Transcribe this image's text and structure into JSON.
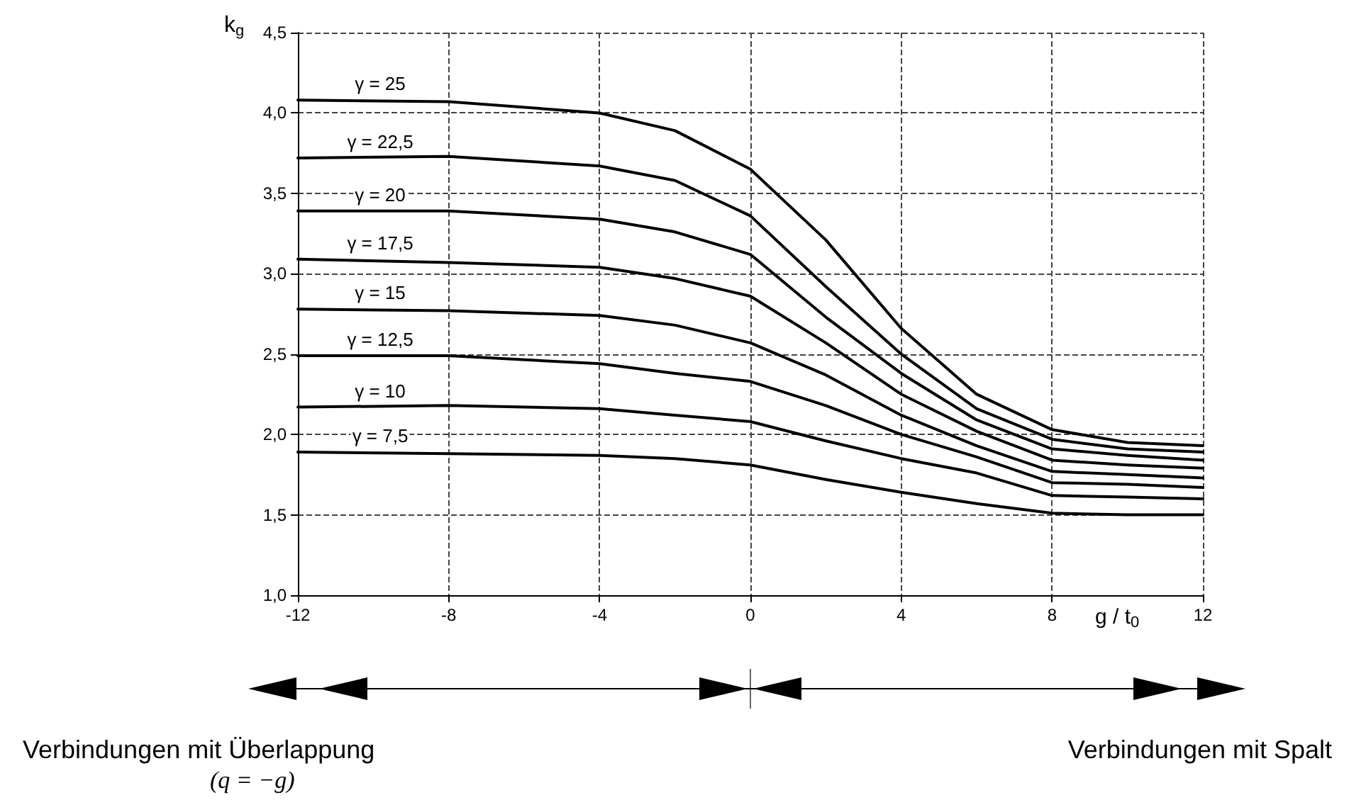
{
  "chart_data": {
    "type": "line",
    "xlabel": "g / t$_{0}$",
    "ylabel": "k$_{g}$",
    "x": [
      -12,
      -8,
      -4,
      -2,
      0,
      2,
      4,
      6,
      8,
      10,
      12
    ],
    "series": [
      {
        "name": "γ = 25",
        "color": "#000000",
        "values": [
          4.08,
          4.07,
          4.0,
          3.89,
          3.65,
          3.21,
          2.66,
          2.25,
          2.03,
          1.95,
          1.93
        ]
      },
      {
        "name": "γ = 22,5",
        "color": "#000000",
        "values": [
          3.72,
          3.73,
          3.67,
          3.58,
          3.36,
          2.92,
          2.5,
          2.16,
          1.97,
          1.91,
          1.89
        ]
      },
      {
        "name": "γ = 20",
        "color": "#000000",
        "values": [
          3.39,
          3.39,
          3.34,
          3.26,
          3.12,
          2.73,
          2.38,
          2.09,
          1.91,
          1.87,
          1.84
        ]
      },
      {
        "name": "γ = 17,5",
        "color": "#000000",
        "values": [
          3.09,
          3.07,
          3.04,
          2.97,
          2.86,
          2.57,
          2.25,
          2.02,
          1.84,
          1.81,
          1.79
        ]
      },
      {
        "name": "γ = 15",
        "color": "#000000",
        "values": [
          2.78,
          2.77,
          2.74,
          2.68,
          2.57,
          2.37,
          2.12,
          1.93,
          1.77,
          1.75,
          1.73
        ]
      },
      {
        "name": "γ = 12,5",
        "color": "#000000",
        "values": [
          2.49,
          2.49,
          2.44,
          2.38,
          2.33,
          2.18,
          2.0,
          1.86,
          1.7,
          1.69,
          1.67
        ]
      },
      {
        "name": "γ = 10",
        "color": "#000000",
        "values": [
          2.17,
          2.18,
          2.16,
          2.12,
          2.08,
          1.96,
          1.85,
          1.76,
          1.62,
          1.61,
          1.6
        ]
      },
      {
        "name": "γ = 7,5",
        "color": "#000000",
        "values": [
          1.89,
          1.88,
          1.87,
          1.85,
          1.81,
          1.72,
          1.64,
          1.57,
          1.51,
          1.5,
          1.5
        ]
      }
    ],
    "xlim": [
      -12,
      12
    ],
    "xticks": [
      -12,
      -8,
      -4,
      0,
      4,
      8,
      12
    ],
    "ylim": [
      1,
      4.5
    ],
    "yticks": [
      {
        "value": 1,
        "label": "1,0"
      },
      {
        "value": 1.5,
        "label": "1,5"
      },
      {
        "value": 2,
        "label": "2,0"
      },
      {
        "value": 2.5,
        "label": "2,5"
      },
      {
        "value": 3,
        "label": "3,0"
      },
      {
        "value": 3.5,
        "label": "3,5"
      },
      {
        "value": 4,
        "label": "4,0"
      },
      {
        "value": 4.5,
        "label": "4,5"
      }
    ],
    "grid": true,
    "line_style": "solid",
    "marker": "none",
    "annotations": [
      "Verbindungen mit Überlappung",
      "(q = −g)",
      "Verbindungen mit Spalt"
    ]
  }
}
